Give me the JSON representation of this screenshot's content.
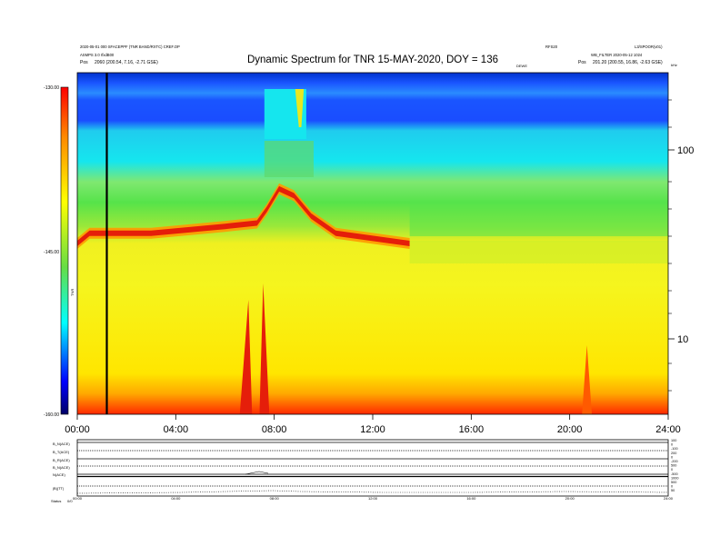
{
  "header": {
    "title": "Dynamic Spectrum for TNR 15-MAY-2020, DOY = 136",
    "left_line1": "2020-05-01 000 SFACEPPF (TNR BAND/RXTC) CREF.OP",
    "left_line2": "ASMPS 3.0 rfxdB00",
    "left_line3_label": "Pos",
    "left_line3_value": "2060 (200.54, 7.16, -2.71 GSE)",
    "right_line1a": "RFS20",
    "right_line1b": "L3/SPOOR(v01)",
    "right_line2": "WB_FILTER 2020-05-12 1024",
    "right_line3_label": "Pos",
    "right_line3_value": "201.20 (200.55, 16.86, -2.63 GSE)",
    "center_small": "DEWE"
  },
  "colorbar": {
    "top_label": "-130.00",
    "mid_label": "-145.00",
    "bottom_label": "-160.00",
    "side_label": "TNR",
    "gradient": [
      "#ff0000",
      "#ff8800",
      "#ffff00",
      "#66dd44",
      "#00ffff",
      "#0000ff",
      "#000066"
    ]
  },
  "chart_data": {
    "type": "heatmap",
    "title": "Dynamic Spectrum for TNR 15-MAY-2020, DOY = 136",
    "x_tick_labels": [
      "00:00",
      "04:00",
      "08:00",
      "12:00",
      "16:00",
      "20:00",
      "24:00"
    ],
    "x_range_hours": [
      0,
      24
    ],
    "y_scale": "log",
    "y_tick_labels": [
      "100",
      "10"
    ],
    "y_top_label": "kHz",
    "color_range": [
      -160,
      -130
    ],
    "marker_line_time_hours": 1.2,
    "bands": [
      {
        "name": "blue-band",
        "color": "#1a4dff"
      },
      {
        "name": "cyan",
        "color": "#15e6ee"
      },
      {
        "name": "green",
        "color": "#56e34a"
      },
      {
        "name": "yellow",
        "color": "#f5f51e"
      },
      {
        "name": "red-ridge",
        "color": "#e51e0a"
      }
    ],
    "ridge_profile": [
      [
        0.0,
        0.5
      ],
      [
        0.5,
        0.47
      ],
      [
        1.5,
        0.47
      ],
      [
        3.0,
        0.47
      ],
      [
        4.5,
        0.46
      ],
      [
        6.0,
        0.45
      ],
      [
        7.3,
        0.44
      ],
      [
        7.7,
        0.4
      ],
      [
        8.2,
        0.34
      ],
      [
        8.8,
        0.36
      ],
      [
        9.5,
        0.42
      ],
      [
        10.5,
        0.47
      ],
      [
        11.5,
        0.48
      ],
      [
        12.5,
        0.49
      ],
      [
        13.5,
        0.5
      ]
    ],
    "lower_panel": {
      "left_labels": [
        "B_N(ACE)",
        "B_T(ACE)",
        "B_R(ACE)",
        "B_N(ACE)",
        "N(ACE)",
        "|B|(TT)"
      ],
      "right_labels": [
        "100",
        "0",
        "-100",
        "200",
        "0",
        "-200",
        "500",
        "0",
        "-500",
        "1000",
        "500",
        "0",
        "50"
      ],
      "x_tick_labels": [
        "00:00",
        "04:00",
        "08:00",
        "12:00",
        "16:00",
        "20:00",
        "24:00"
      ],
      "footer_left": "Status",
      "footer_code": "0/0"
    }
  }
}
